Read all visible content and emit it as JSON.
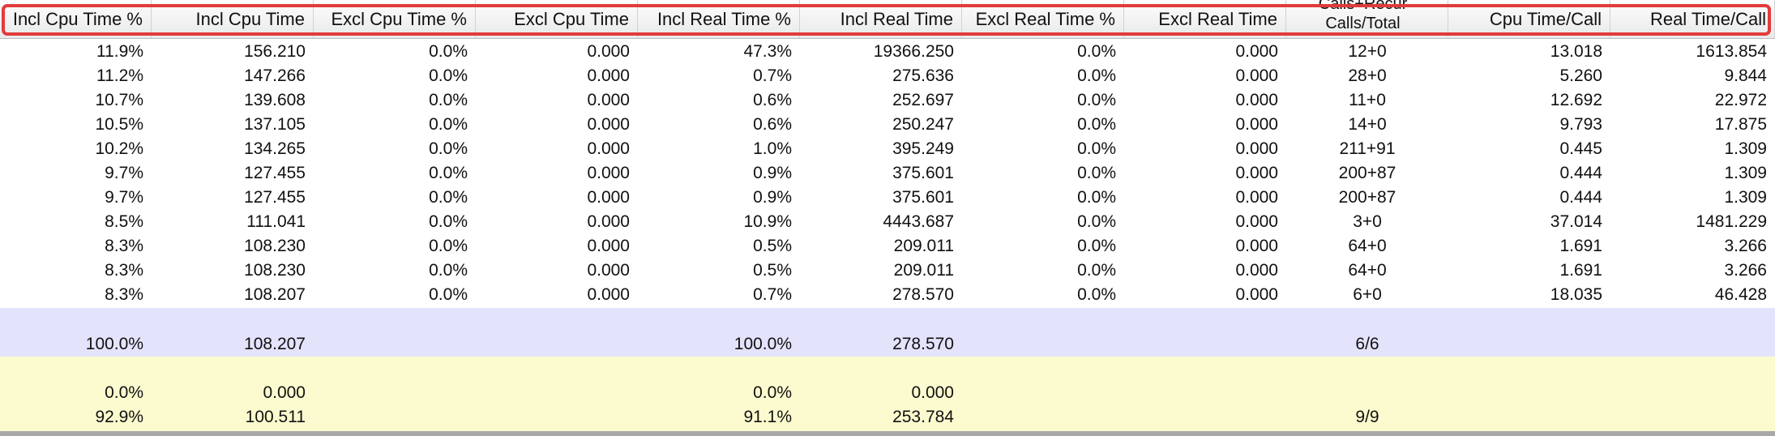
{
  "columns": [
    {
      "label": "Incl Cpu Time %"
    },
    {
      "label": "Incl Cpu Time"
    },
    {
      "label": "Excl Cpu Time %"
    },
    {
      "label": "Excl Cpu Time"
    },
    {
      "label": "Incl Real Time %"
    },
    {
      "label": "Incl Real Time"
    },
    {
      "label": "Excl Real Time %"
    },
    {
      "label": "Excl Real Time"
    },
    {
      "label_line1": "Calls+Recur",
      "label_line2": "Calls/Total"
    },
    {
      "label": "Cpu Time/Call"
    },
    {
      "label": "Real Time/Call"
    }
  ],
  "rows": [
    [
      "11.9%",
      "156.210",
      "0.0%",
      "0.000",
      "47.3%",
      "19366.250",
      "0.0%",
      "0.000",
      "12+0",
      "13.018",
      "1613.854"
    ],
    [
      "11.2%",
      "147.266",
      "0.0%",
      "0.000",
      "0.7%",
      "275.636",
      "0.0%",
      "0.000",
      "28+0",
      "5.260",
      "9.844"
    ],
    [
      "10.7%",
      "139.608",
      "0.0%",
      "0.000",
      "0.6%",
      "252.697",
      "0.0%",
      "0.000",
      "11+0",
      "12.692",
      "22.972"
    ],
    [
      "10.5%",
      "137.105",
      "0.0%",
      "0.000",
      "0.6%",
      "250.247",
      "0.0%",
      "0.000",
      "14+0",
      "9.793",
      "17.875"
    ],
    [
      "10.2%",
      "134.265",
      "0.0%",
      "0.000",
      "1.0%",
      "395.249",
      "0.0%",
      "0.000",
      "211+91",
      "0.445",
      "1.309"
    ],
    [
      "9.7%",
      "127.455",
      "0.0%",
      "0.000",
      "0.9%",
      "375.601",
      "0.0%",
      "0.000",
      "200+87",
      "0.444",
      "1.309"
    ],
    [
      "9.7%",
      "127.455",
      "0.0%",
      "0.000",
      "0.9%",
      "375.601",
      "0.0%",
      "0.000",
      "200+87",
      "0.444",
      "1.309"
    ],
    [
      "8.5%",
      "111.041",
      "0.0%",
      "0.000",
      "10.9%",
      "4443.687",
      "0.0%",
      "0.000",
      "3+0",
      "37.014",
      "1481.229"
    ],
    [
      "8.3%",
      "108.230",
      "0.0%",
      "0.000",
      "0.5%",
      "209.011",
      "0.0%",
      "0.000",
      "64+0",
      "1.691",
      "3.266"
    ],
    [
      "8.3%",
      "108.230",
      "0.0%",
      "0.000",
      "0.5%",
      "209.011",
      "0.0%",
      "0.000",
      "64+0",
      "1.691",
      "3.266"
    ],
    [
      "8.3%",
      "108.207",
      "0.0%",
      "0.000",
      "0.7%",
      "278.570",
      "0.0%",
      "0.000",
      "6+0",
      "18.035",
      "46.428"
    ]
  ],
  "parent_row": [
    "100.0%",
    "108.207",
    "",
    "",
    "100.0%",
    "278.570",
    "",
    "",
    "6/6",
    "",
    ""
  ],
  "child_rows": [
    [
      "0.0%",
      "0.000",
      "",
      "",
      "0.0%",
      "0.000",
      "",
      "",
      "",
      "",
      ""
    ],
    [
      "92.9%",
      "100.511",
      "",
      "",
      "91.1%",
      "253.784",
      "",
      "",
      "9/9",
      "",
      ""
    ]
  ]
}
